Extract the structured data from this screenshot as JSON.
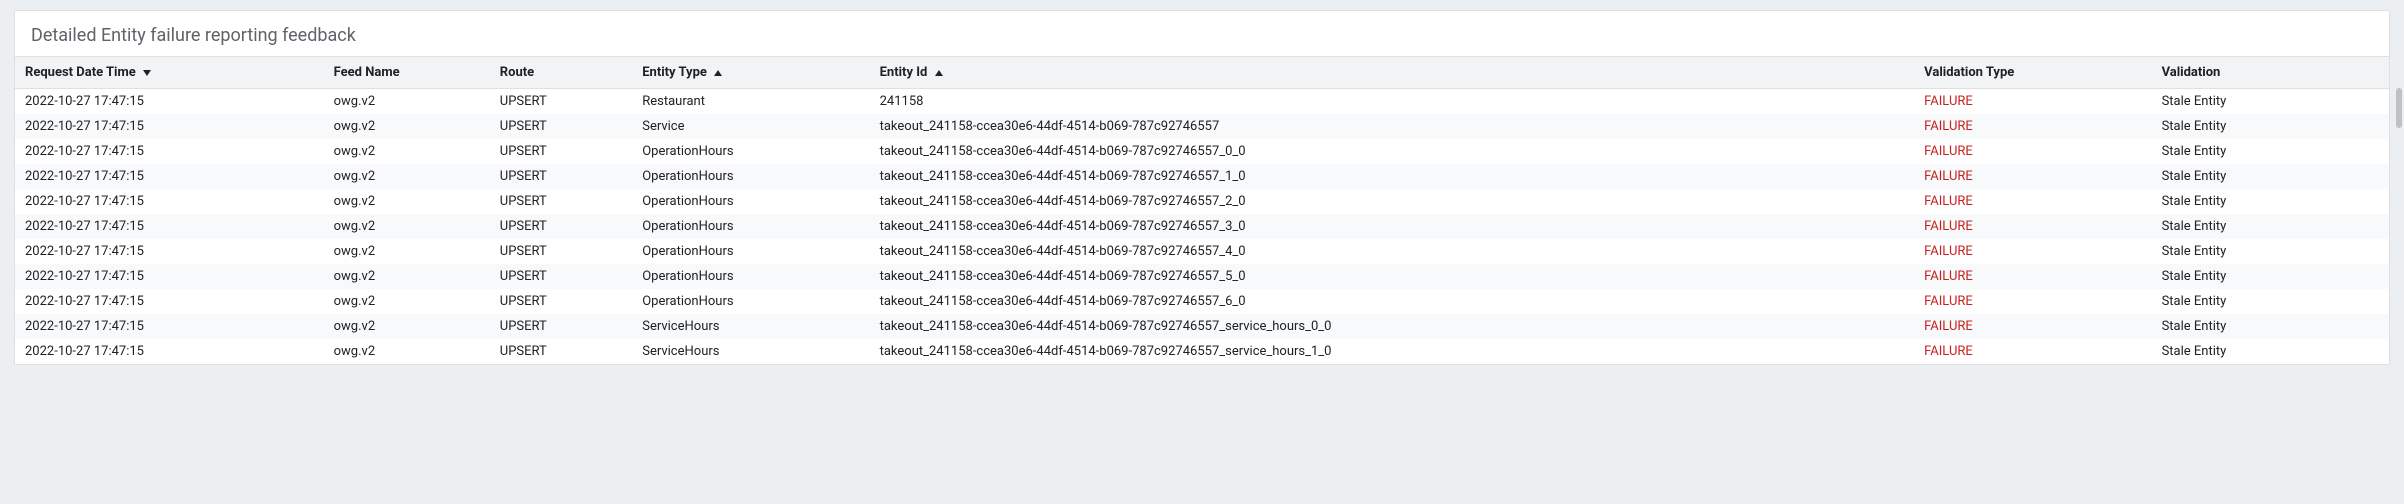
{
  "title": "Detailed Entity failure reporting feedback",
  "columns": [
    {
      "label": "Request Date Time",
      "sort": "desc"
    },
    {
      "label": "Feed Name",
      "sort": null
    },
    {
      "label": "Route",
      "sort": null
    },
    {
      "label": "Entity Type",
      "sort": "asc"
    },
    {
      "label": "Entity Id",
      "sort": "asc"
    },
    {
      "label": "Validation Type",
      "sort": null
    },
    {
      "label": "Validation",
      "sort": null
    }
  ],
  "failure_color": "#c5221f",
  "rows": [
    {
      "dt": "2022-10-27 17:47:15",
      "feed": "owg.v2",
      "route": "UPSERT",
      "etype": "Restaurant",
      "eid": "241158",
      "vtype": "FAILURE",
      "val": "Stale Entity"
    },
    {
      "dt": "2022-10-27 17:47:15",
      "feed": "owg.v2",
      "route": "UPSERT",
      "etype": "Service",
      "eid": "takeout_241158-ccea30e6-44df-4514-b069-787c92746557",
      "vtype": "FAILURE",
      "val": "Stale Entity"
    },
    {
      "dt": "2022-10-27 17:47:15",
      "feed": "owg.v2",
      "route": "UPSERT",
      "etype": "OperationHours",
      "eid": "takeout_241158-ccea30e6-44df-4514-b069-787c92746557_0_0",
      "vtype": "FAILURE",
      "val": "Stale Entity"
    },
    {
      "dt": "2022-10-27 17:47:15",
      "feed": "owg.v2",
      "route": "UPSERT",
      "etype": "OperationHours",
      "eid": "takeout_241158-ccea30e6-44df-4514-b069-787c92746557_1_0",
      "vtype": "FAILURE",
      "val": "Stale Entity"
    },
    {
      "dt": "2022-10-27 17:47:15",
      "feed": "owg.v2",
      "route": "UPSERT",
      "etype": "OperationHours",
      "eid": "takeout_241158-ccea30e6-44df-4514-b069-787c92746557_2_0",
      "vtype": "FAILURE",
      "val": "Stale Entity"
    },
    {
      "dt": "2022-10-27 17:47:15",
      "feed": "owg.v2",
      "route": "UPSERT",
      "etype": "OperationHours",
      "eid": "takeout_241158-ccea30e6-44df-4514-b069-787c92746557_3_0",
      "vtype": "FAILURE",
      "val": "Stale Entity"
    },
    {
      "dt": "2022-10-27 17:47:15",
      "feed": "owg.v2",
      "route": "UPSERT",
      "etype": "OperationHours",
      "eid": "takeout_241158-ccea30e6-44df-4514-b069-787c92746557_4_0",
      "vtype": "FAILURE",
      "val": "Stale Entity"
    },
    {
      "dt": "2022-10-27 17:47:15",
      "feed": "owg.v2",
      "route": "UPSERT",
      "etype": "OperationHours",
      "eid": "takeout_241158-ccea30e6-44df-4514-b069-787c92746557_5_0",
      "vtype": "FAILURE",
      "val": "Stale Entity"
    },
    {
      "dt": "2022-10-27 17:47:15",
      "feed": "owg.v2",
      "route": "UPSERT",
      "etype": "OperationHours",
      "eid": "takeout_241158-ccea30e6-44df-4514-b069-787c92746557_6_0",
      "vtype": "FAILURE",
      "val": "Stale Entity"
    },
    {
      "dt": "2022-10-27 17:47:15",
      "feed": "owg.v2",
      "route": "UPSERT",
      "etype": "ServiceHours",
      "eid": "takeout_241158-ccea30e6-44df-4514-b069-787c92746557_service_hours_0_0",
      "vtype": "FAILURE",
      "val": "Stale Entity"
    },
    {
      "dt": "2022-10-27 17:47:15",
      "feed": "owg.v2",
      "route": "UPSERT",
      "etype": "ServiceHours",
      "eid": "takeout_241158-ccea30e6-44df-4514-b069-787c92746557_service_hours_1_0",
      "vtype": "FAILURE",
      "val": "Stale Entity"
    }
  ]
}
